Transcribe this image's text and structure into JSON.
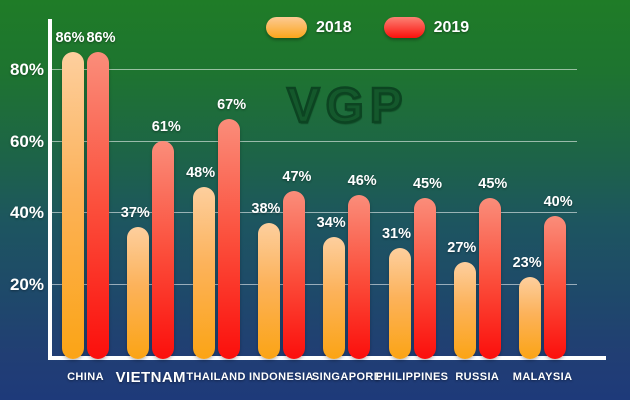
{
  "watermark": {
    "text": "VGP"
  },
  "legend": [
    {
      "label": "2018",
      "color_top": "#fdca94",
      "color_bottom": "#fba61c"
    },
    {
      "label": "2019",
      "color_top": "#fb8274",
      "color_bottom": "#fb100c"
    }
  ],
  "colors": {
    "background_top": "#1f7c27",
    "background_bottom": "#1e3a7a",
    "axis": "#ffffff",
    "gridline": "rgba(255,255,255,0.55)",
    "label_text": "#ffffff",
    "series_2018_top": "#fdcf9e",
    "series_2018_bottom": "#fba415",
    "series_2019_top": "#fa8d7a",
    "series_2019_bottom": "#fb0f0c",
    "watermark_green": "#14572b"
  },
  "chart_data": {
    "type": "bar",
    "title": "",
    "xlabel": "",
    "ylabel": "",
    "categories": [
      "CHINA",
      "VIETNAM",
      "THAILAND",
      "INDONESIA",
      "SINGAPORE",
      "PHILIPPINES",
      "RUSSIA",
      "MALAYSIA"
    ],
    "series": [
      {
        "name": "2018",
        "values": [
          86,
          37,
          48,
          38,
          34,
          31,
          27,
          23
        ]
      },
      {
        "name": "2019",
        "values": [
          86,
          61,
          67,
          47,
          46,
          45,
          45,
          40
        ]
      }
    ],
    "value_suffix": "%",
    "data_labels": true,
    "y_ticks": [
      20,
      40,
      60,
      80
    ],
    "y_tick_suffix": "%",
    "ylim": [
      0,
      100
    ],
    "grid": true,
    "legend_position": "top-center",
    "highlight_category": "VIETNAM"
  }
}
